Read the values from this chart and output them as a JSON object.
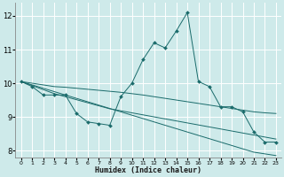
{
  "xlabel": "Humidex (Indice chaleur)",
  "bg_color": "#ceeaea",
  "grid_color": "#ffffff",
  "line_color": "#1a6b6b",
  "x_data": [
    0,
    1,
    2,
    3,
    4,
    5,
    6,
    7,
    8,
    9,
    10,
    11,
    12,
    13,
    14,
    15,
    16,
    17,
    18,
    19,
    20,
    21,
    22,
    23
  ],
  "series1": [
    10.05,
    9.9,
    9.65,
    9.65,
    9.65,
    9.1,
    8.85,
    8.8,
    8.75,
    9.6,
    10.0,
    10.7,
    11.2,
    11.05,
    11.55,
    12.1,
    10.05,
    9.9,
    9.3,
    9.3,
    9.15,
    8.55,
    8.25,
    8.25
  ],
  "series2": [
    10.05,
    10.0,
    9.95,
    9.9,
    9.88,
    9.85,
    9.82,
    9.79,
    9.76,
    9.73,
    9.69,
    9.65,
    9.6,
    9.55,
    9.5,
    9.45,
    9.4,
    9.35,
    9.3,
    9.25,
    9.2,
    9.15,
    9.12,
    9.1
  ],
  "series3": [
    10.05,
    9.95,
    9.85,
    9.75,
    9.65,
    9.55,
    9.45,
    9.35,
    9.25,
    9.15,
    9.05,
    8.95,
    8.85,
    8.75,
    8.65,
    8.55,
    8.45,
    8.35,
    8.25,
    8.15,
    8.05,
    7.95,
    7.9,
    7.85
  ],
  "series4": [
    10.05,
    9.93,
    9.81,
    9.69,
    9.6,
    9.51,
    9.42,
    9.33,
    9.24,
    9.18,
    9.12,
    9.06,
    9.0,
    8.94,
    8.88,
    8.82,
    8.76,
    8.7,
    8.64,
    8.58,
    8.52,
    8.46,
    8.4,
    8.34
  ],
  "ylim": [
    7.8,
    12.4
  ],
  "xlim": [
    -0.5,
    23.5
  ],
  "yticks": [
    8,
    9,
    10,
    11,
    12
  ],
  "xticks": [
    0,
    1,
    2,
    3,
    4,
    5,
    6,
    7,
    8,
    9,
    10,
    11,
    12,
    13,
    14,
    15,
    16,
    17,
    18,
    19,
    20,
    21,
    22,
    23
  ]
}
